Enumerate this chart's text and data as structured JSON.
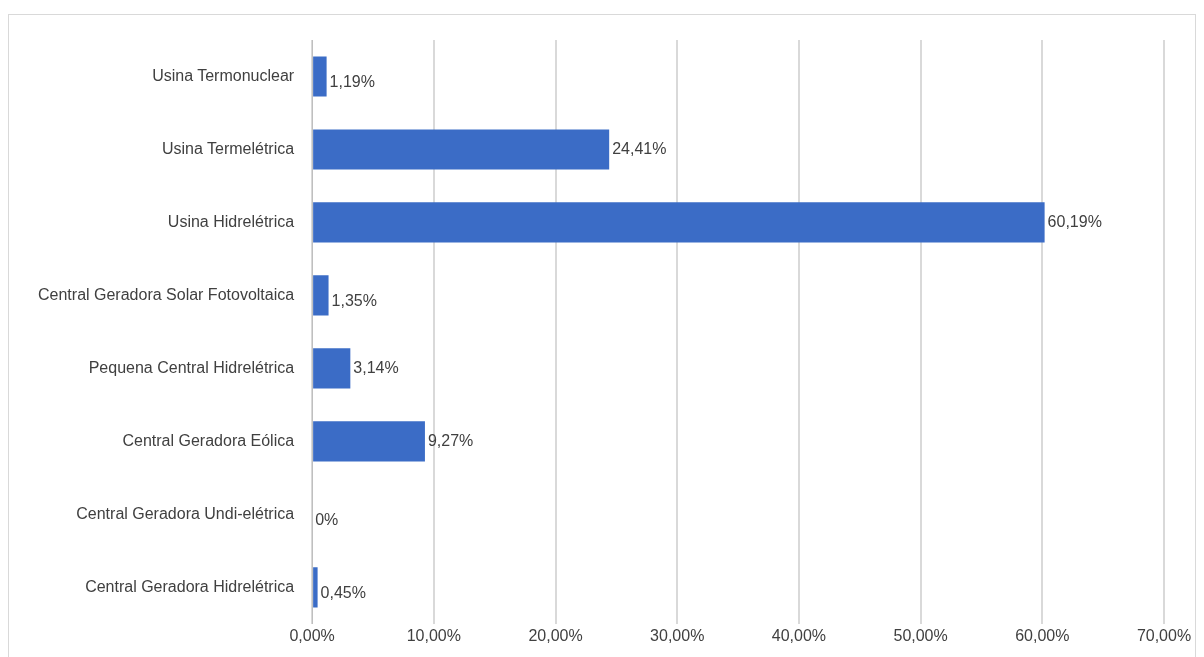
{
  "chart_data": {
    "type": "bar",
    "orientation": "horizontal",
    "categories": [
      "Usina Termonuclear",
      "Usina Termelétrica",
      "Usina Hidrelétrica",
      "Central Geradora Solar Fotovoltaica",
      "Pequena Central Hidrelétrica",
      "Central Geradora Eólica",
      "Central Geradora Undi-elétrica",
      "Central Geradora Hidrelétrica"
    ],
    "values": [
      1.19,
      24.41,
      60.19,
      1.35,
      3.14,
      9.27,
      0,
      0.45
    ],
    "value_labels": [
      "1,19%",
      "24,41%",
      "60,19%",
      "1,35%",
      "3,14%",
      "9,27%",
      "0%",
      "0,45%"
    ],
    "color": "#3b6cc6",
    "xlim": [
      0,
      70
    ],
    "xticks": [
      {
        "value": 0,
        "label": "0,00%"
      },
      {
        "value": 10,
        "label": "10,00%"
      },
      {
        "value": 20,
        "label": "20,00%"
      },
      {
        "value": 30,
        "label": "30,00%"
      },
      {
        "value": 40,
        "label": "40,00%"
      },
      {
        "value": 50,
        "label": "50,00%"
      },
      {
        "value": 60,
        "label": "60,00%"
      },
      {
        "value": 70,
        "label": "70,00%"
      }
    ],
    "grid": "x"
  }
}
